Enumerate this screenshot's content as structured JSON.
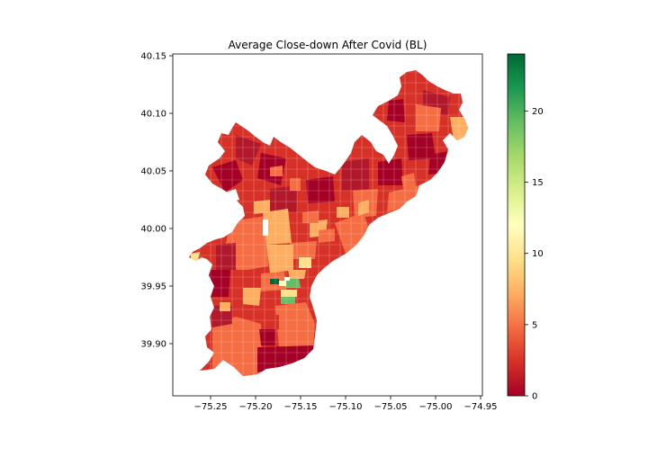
{
  "title": "Average Close-down After Covid (BL)",
  "x_axis": {
    "ticks": [
      -75.25,
      -75.2,
      -75.15,
      -75.1,
      -75.05,
      -75.0,
      -74.95
    ],
    "tick_labels": [
      "−75.25",
      "−75.20",
      "−75.15",
      "−75.10",
      "−75.05",
      "−75.00",
      "−74.95"
    ]
  },
  "y_axis": {
    "ticks": [
      39.9,
      39.95,
      40.0,
      40.05,
      40.1,
      40.15
    ],
    "tick_labels": [
      "39.90",
      "39.95",
      "40.00",
      "40.05",
      "40.10",
      "40.15"
    ]
  },
  "colorbar": {
    "colormap": "RdYlGn",
    "range": [
      0,
      24
    ],
    "ticks": [
      0,
      5,
      10,
      15,
      20
    ],
    "tick_labels": [
      "0",
      "5",
      "10",
      "15",
      "20"
    ]
  },
  "colors": {
    "low": "#a50026",
    "mid": "#ffffbf",
    "high": "#006837",
    "background": "#ffffff"
  }
}
